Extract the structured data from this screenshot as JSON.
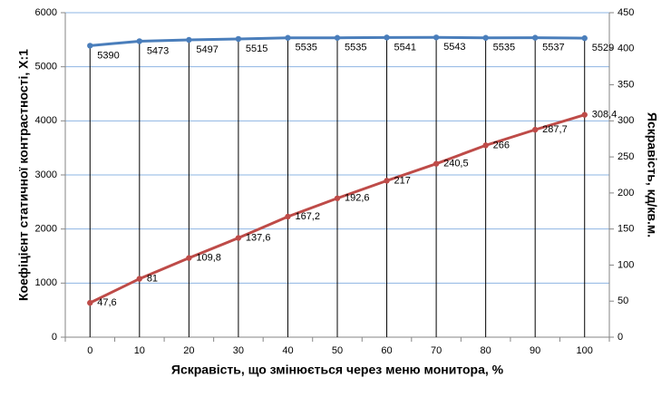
{
  "chart_data": {
    "type": "line",
    "x_label": "Яскравість, що змінюється через меню монитора, %",
    "y_label": "Коефіцієнт статичної контрастності, Х:1",
    "y2_label": "Яскравість, кд/кв.м.",
    "categories": [
      "0",
      "10",
      "20",
      "30",
      "40",
      "50",
      "60",
      "70",
      "80",
      "90",
      "100"
    ],
    "ylim": [
      0,
      6000
    ],
    "yticks": [
      0,
      1000,
      2000,
      3000,
      4000,
      5000,
      6000
    ],
    "y2lim": [
      0,
      450
    ],
    "y2ticks": [
      0,
      50,
      100,
      150,
      200,
      250,
      300,
      350,
      400,
      450
    ],
    "grid": true,
    "drop_lines": true,
    "series": [
      {
        "color": "#4a7ebb",
        "axis": "y",
        "values": [
          5390,
          5473,
          5497,
          5515,
          5535,
          5535,
          5541,
          5543,
          5535,
          5537,
          5529
        ]
      },
      {
        "color": "#be4b48",
        "axis": "y2",
        "values": [
          47.6,
          81,
          109.8,
          137.6,
          167.2,
          192.6,
          217,
          240.5,
          266,
          287.7,
          308.4
        ],
        "value_labels": [
          "47,6",
          "81",
          "109,8",
          "137,6",
          "167,2",
          "192,6",
          "217",
          "240,5",
          "266",
          "287,7",
          "308,4"
        ]
      }
    ]
  }
}
